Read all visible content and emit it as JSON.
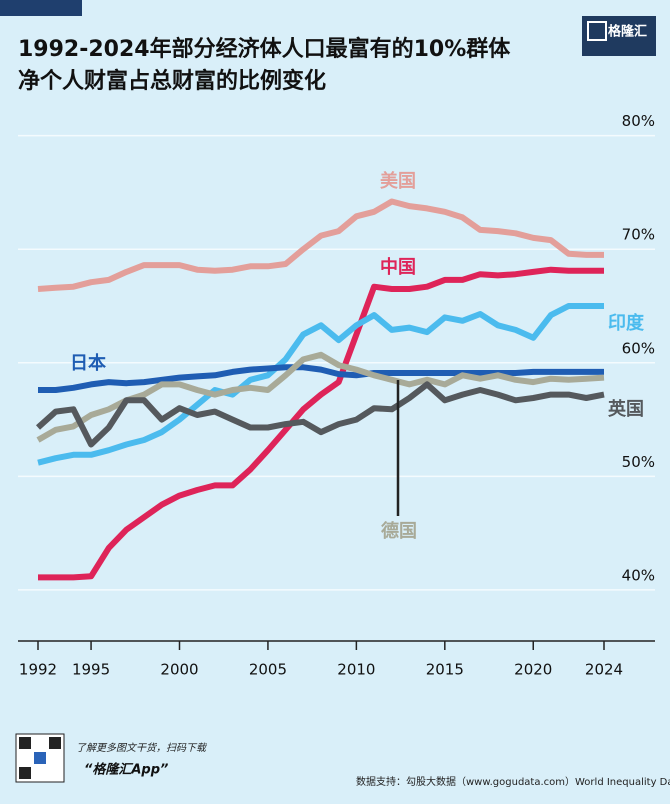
{
  "chart_data": {
    "type": "line",
    "title": "1992-2024年部分经济体人口最富有的10%群体",
    "subtitle": "净个人财富占总财富的比例变化",
    "logo": "格隆汇",
    "footer_note": "了解更多图文干货，扫码下载",
    "footer_app": "“格隆汇App”",
    "source": "数据支持：勾股大数据（www.gogudata.com）World Inequality Database",
    "x": [
      1992,
      1993,
      1994,
      1995,
      1996,
      1997,
      1998,
      1999,
      2000,
      2001,
      2002,
      2003,
      2004,
      2005,
      2006,
      2007,
      2008,
      2009,
      2010,
      2011,
      2012,
      2013,
      2014,
      2015,
      2016,
      2017,
      2018,
      2019,
      2020,
      2021,
      2022,
      2023,
      2024
    ],
    "xlim": [
      1992,
      2024
    ],
    "xticks": [
      1992,
      1995,
      2000,
      2005,
      2010,
      2015,
      2020,
      2024
    ],
    "ylim": [
      35.5,
      80.5
    ],
    "yticks": [
      {
        "value": 40,
        "label": "40%"
      },
      {
        "value": 50,
        "label": "50%"
      },
      {
        "value": 60,
        "label": "60%"
      },
      {
        "value": 70,
        "label": "70%"
      },
      {
        "value": 80,
        "label": "80%"
      }
    ],
    "grid": true,
    "series": [
      {
        "name": "美国",
        "color": "#e39f9a",
        "values": [
          66.5,
          66.6,
          66.7,
          67.1,
          67.3,
          68.0,
          68.6,
          68.6,
          68.6,
          68.2,
          68.1,
          68.2,
          68.5,
          68.5,
          68.7,
          70.0,
          71.2,
          71.6,
          72.9,
          73.3,
          74.2,
          73.8,
          73.6,
          73.3,
          72.8,
          71.7,
          71.6,
          71.4,
          71.0,
          70.8,
          69.6,
          69.5,
          69.5
        ]
      },
      {
        "name": "中国",
        "color": "#de2459",
        "values": [
          41.1,
          41.1,
          41.1,
          41.2,
          43.7,
          45.3,
          46.4,
          47.5,
          48.3,
          48.8,
          49.2,
          49.2,
          50.6,
          52.3,
          54.1,
          55.9,
          57.2,
          58.3,
          62.5,
          66.7,
          66.5,
          66.5,
          66.7,
          67.3,
          67.3,
          67.8,
          67.7,
          67.8,
          68.0,
          68.2,
          68.1,
          68.1,
          68.1
        ]
      },
      {
        "name": "印度",
        "color": "#4bbbee",
        "values": [
          51.2,
          51.6,
          51.9,
          51.9,
          52.3,
          52.8,
          53.2,
          53.9,
          55.0,
          56.3,
          57.6,
          57.2,
          58.5,
          58.9,
          60.3,
          62.5,
          63.3,
          62.0,
          63.3,
          64.2,
          62.9,
          63.1,
          62.7,
          64.0,
          63.7,
          64.3,
          63.3,
          62.9,
          62.2,
          64.2,
          65.0,
          65.0,
          65.0
        ]
      },
      {
        "name": "日本",
        "color": "#1f5db3",
        "values": [
          57.6,
          57.6,
          57.8,
          58.1,
          58.3,
          58.2,
          58.3,
          58.5,
          58.7,
          58.8,
          58.9,
          59.2,
          59.4,
          59.5,
          59.6,
          59.6,
          59.4,
          59.0,
          58.9,
          59.1,
          59.1,
          59.1,
          59.1,
          59.1,
          59.1,
          59.1,
          59.1,
          59.1,
          59.2,
          59.2,
          59.2,
          59.2,
          59.2
        ]
      },
      {
        "name": "德国",
        "color": "#a8aa98",
        "values": [
          53.2,
          54.1,
          54.4,
          55.4,
          55.9,
          56.7,
          57.2,
          58.1,
          58.1,
          57.6,
          57.2,
          57.6,
          57.8,
          57.6,
          58.9,
          60.3,
          60.7,
          59.8,
          59.4,
          58.9,
          58.5,
          58.1,
          58.5,
          58.1,
          58.9,
          58.6,
          58.9,
          58.5,
          58.3,
          58.6,
          58.5,
          58.6,
          58.7
        ]
      },
      {
        "name": "英国",
        "color": "#55595d",
        "values": [
          54.3,
          55.7,
          55.9,
          52.8,
          54.3,
          56.7,
          56.7,
          55.0,
          56.0,
          55.4,
          55.7,
          55.0,
          54.3,
          54.3,
          54.6,
          54.8,
          53.9,
          54.6,
          55.0,
          56.0,
          55.9,
          56.9,
          58.1,
          56.7,
          57.2,
          57.6,
          57.2,
          56.7,
          56.9,
          57.2,
          57.2,
          56.9,
          57.2
        ]
      }
    ]
  }
}
